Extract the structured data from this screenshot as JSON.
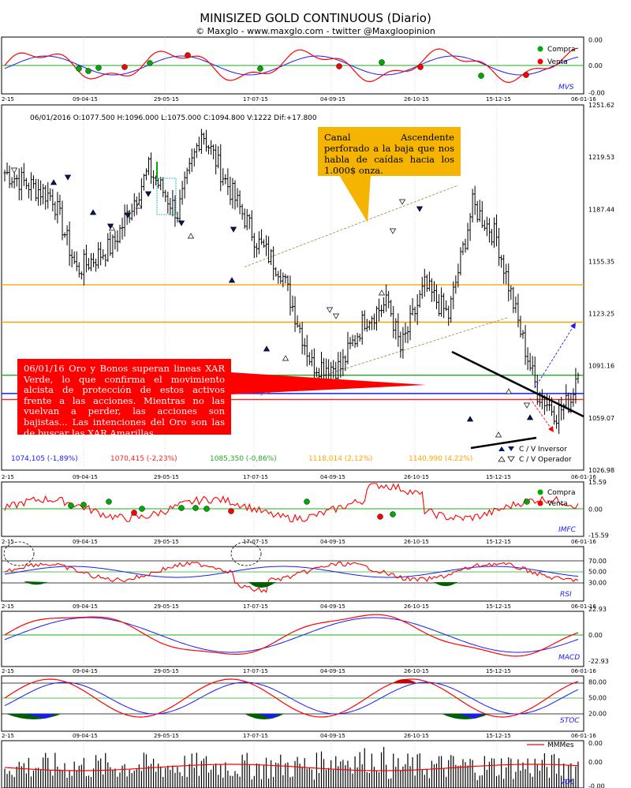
{
  "header": {
    "title": "MINISIZED GOLD CONTINUOUS (Diario)",
    "subtitle": "© Maxglo - www.maxglo.com - twitter @Maxgloopinion"
  },
  "x_dates": [
    "2-15",
    "09-04-15",
    "29-05-15",
    "17-07-15",
    "04-09-15",
    "26-10-15",
    "15-12-15",
    "06-01-16"
  ],
  "price_panel": {
    "info": "06/01/2016  O:1077.500  H:1096.000  L:1075.000  C:1094.800  V:1222  Dif:+17.800",
    "y_ticks": [
      "1251.62",
      "1219.53",
      "1187.44",
      "1155.35",
      "1123.25",
      "1091.16",
      "1059.07",
      "1026.98"
    ],
    "levels": [
      {
        "label": "1074,105 (-1,89%)",
        "value": 1074.105,
        "color": "#1a1aff"
      },
      {
        "label": "1070,415 (-2,23%)",
        "value": 1070.415,
        "color": "#ff2222"
      },
      {
        "label": "1085,350 (-0,86%)",
        "value": 1085.35,
        "color": "#22aa22"
      },
      {
        "label": "1118,014 (2,12%)",
        "value": 1118.014,
        "color": "#ffa500"
      },
      {
        "label": "1140,990 (4,22%)",
        "value": 1140.99,
        "color": "#ffa500"
      }
    ],
    "legend": [
      "C / V Inversor",
      "C / V Operador"
    ],
    "annotation_yellow": "Canal Ascendente perforado a la baja que nos habla de caídas hacia los 1.000$ onza.",
    "annotation_red": "06/01/16  Oro y Bonos superan lineas XAR Verde, lo que confirma el movimiento alcista de protección de estos activos frente a las acciones. Mientras no las vuelvan a perder, las acciones son bajistas... Las intenciones del Oro son las de buscar las XAR Amarillas"
  },
  "mvs_panel": {
    "name": "MVS",
    "y_ticks": [
      "0.00",
      "0.00",
      "-0.00"
    ],
    "legend": [
      "Compra",
      "Venta"
    ]
  },
  "imfc_panel": {
    "name": "IMFC",
    "y_ticks": [
      "15.59",
      "0.00",
      "-15.59"
    ],
    "legend": [
      "Compra",
      "Venta"
    ]
  },
  "rsi_panel": {
    "name": "RSI",
    "y_ticks": [
      "70.00",
      "50.00",
      "30.00"
    ]
  },
  "macd_panel": {
    "name": "MACD",
    "y_ticks": [
      "22.93",
      "0.00",
      "-22.93"
    ]
  },
  "stoc_panel": {
    "name": "STOC",
    "y_ticks": [
      "80.00",
      "50.00",
      "20.00"
    ]
  },
  "vol_panel": {
    "name": "VOL",
    "y_ticks": [
      "0.00",
      "0.00",
      "-0.00"
    ],
    "legend": [
      "MMMes"
    ]
  },
  "colors": {
    "up": "#008000",
    "down": "#ff0000",
    "signal": "#1a1aff",
    "grid_green": "#22aa22"
  },
  "chart_data": {
    "type": "line",
    "title": "MINISIZED GOLD CONTINUOUS (Diario)",
    "x": [
      "09-04-15",
      "29-05-15",
      "17-07-15",
      "04-09-15",
      "26-10-15",
      "15-12-15",
      "06-01-16"
    ],
    "series": [],
    "ylim": [
      1026.98,
      1251.62
    ],
    "last_bar": {
      "date": "06/01/2016",
      "open": 1077.5,
      "high": 1096.0,
      "low": 1075.0,
      "close": 1094.8,
      "volume": 1222,
      "change": 17.8
    },
    "horizontal_levels": [
      1074.105,
      1070.415,
      1085.35,
      1118.014,
      1140.99
    ]
  }
}
